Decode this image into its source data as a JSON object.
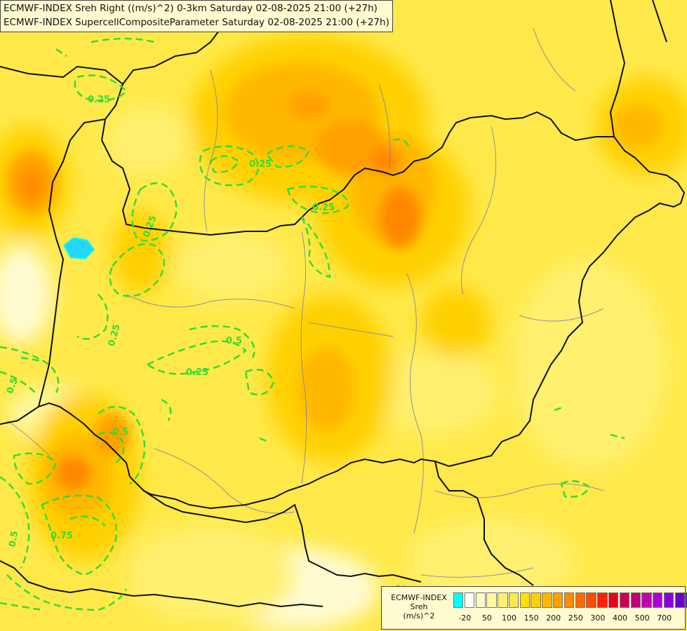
{
  "title": {
    "line1": "ECMWF-INDEX Sreh Right ((m/s)^2) 0-3km Saturday 02-08-2025 21:00 (+27h)",
    "line2": "ECMWF-INDEX SupercellCompositeParameter Saturday 02-08-2025 21:00 (+27h)"
  },
  "legend": {
    "title_lines": [
      "ECMWF-INDEX",
      "Sreh",
      "(m/s)^2"
    ],
    "colors": [
      "#00ffff",
      "#ffffff",
      "#fffbd0",
      "#fff8a0",
      "#fff070",
      "#ffe94a",
      "#ffe000",
      "#ffd000",
      "#ffb800",
      "#ffa000",
      "#ff8800",
      "#ff6a00",
      "#ff4a00",
      "#ff2000",
      "#e8001e",
      "#d00050",
      "#c0007a",
      "#c000b0",
      "#b000d8",
      "#8c00e0",
      "#6800d0",
      "#4a00b0",
      "#2a0090",
      "#1a0070"
    ],
    "ticks": [
      "-20",
      "50",
      "100",
      "150",
      "200",
      "250",
      "300",
      "400",
      "500",
      "700"
    ]
  },
  "contour_labels": [
    "0.25",
    "0.25",
    "0.5",
    "0.25",
    "0.25",
    "0.5",
    "0.75",
    "0.25",
    "0.5",
    "0.5",
    "0.25"
  ]
}
